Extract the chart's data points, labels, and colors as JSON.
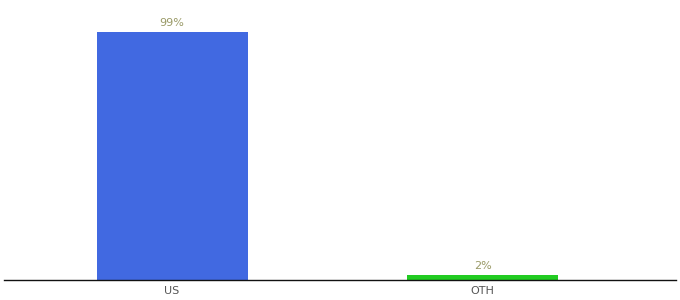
{
  "categories": [
    "US",
    "OTH"
  ],
  "values": [
    99,
    2
  ],
  "bar_colors": [
    "#4169e1",
    "#22cc22"
  ],
  "label_colors": [
    "#999966",
    "#999966"
  ],
  "labels": [
    "99%",
    "2%"
  ],
  "ylim": [
    0,
    110
  ],
  "background_color": "#ffffff",
  "label_fontsize": 8,
  "tick_fontsize": 8,
  "bar_width": 0.18,
  "x_positions": [
    0.25,
    0.62
  ],
  "xlim": [
    0.05,
    0.85
  ]
}
